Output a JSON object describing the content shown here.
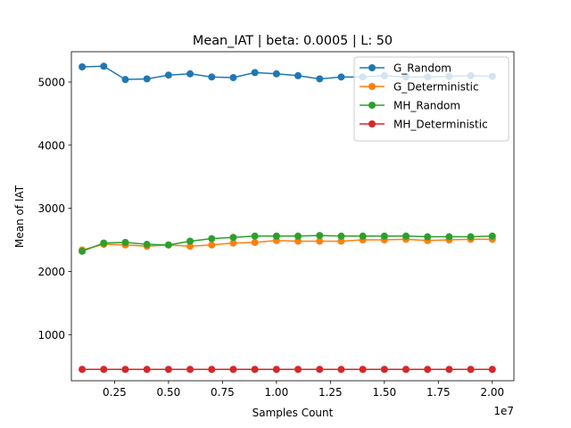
{
  "chart_data": {
    "type": "line",
    "title": "Mean_IAT  | beta: 0.0005 | L: 50",
    "xlabel": "Samples Count",
    "ylabel": "Mean of IAT",
    "x_offset_label": "1e7",
    "xlim": [
      0.05,
      2.1
    ],
    "ylim": [
      270,
      5480
    ],
    "xticks": [
      0.25,
      0.5,
      0.75,
      1.0,
      1.25,
      1.5,
      1.75,
      2.0
    ],
    "xtick_labels": [
      "0.25",
      "0.50",
      "0.75",
      "1.00",
      "1.25",
      "1.50",
      "1.75",
      "2.00"
    ],
    "yticks": [
      1000,
      2000,
      3000,
      4000,
      5000
    ],
    "ytick_labels": [
      "1000",
      "2000",
      "3000",
      "4000",
      "5000"
    ],
    "grid": false,
    "legend_position": "upper right",
    "x": [
      0.1,
      0.2,
      0.3,
      0.4,
      0.5,
      0.6,
      0.7,
      0.8,
      0.9,
      1.0,
      1.1,
      1.2,
      1.3,
      1.4,
      1.5,
      1.6,
      1.7,
      1.8,
      1.9,
      2.0
    ],
    "series": [
      {
        "name": "G_Random",
        "color": "#1f77b4",
        "values": [
          5240,
          5250,
          5040,
          5050,
          5110,
          5130,
          5080,
          5070,
          5150,
          5130,
          5100,
          5050,
          5080,
          5080,
          5100,
          5080,
          5080,
          5090,
          5100,
          5090
        ]
      },
      {
        "name": "G_Deterministic",
        "color": "#ff7f0e",
        "values": [
          2340,
          2430,
          2420,
          2400,
          2420,
          2400,
          2420,
          2450,
          2460,
          2490,
          2480,
          2480,
          2480,
          2500,
          2500,
          2510,
          2490,
          2500,
          2510,
          2510
        ]
      },
      {
        "name": "MH_Random",
        "color": "#2ca02c",
        "values": [
          2320,
          2450,
          2460,
          2430,
          2420,
          2480,
          2520,
          2540,
          2560,
          2560,
          2560,
          2570,
          2560,
          2560,
          2560,
          2560,
          2550,
          2550,
          2550,
          2560
        ]
      },
      {
        "name": "MH_Deterministic",
        "color": "#d62728",
        "values": [
          450,
          450,
          450,
          450,
          450,
          450,
          450,
          450,
          450,
          450,
          450,
          450,
          450,
          450,
          450,
          450,
          450,
          450,
          450,
          450
        ]
      }
    ]
  }
}
